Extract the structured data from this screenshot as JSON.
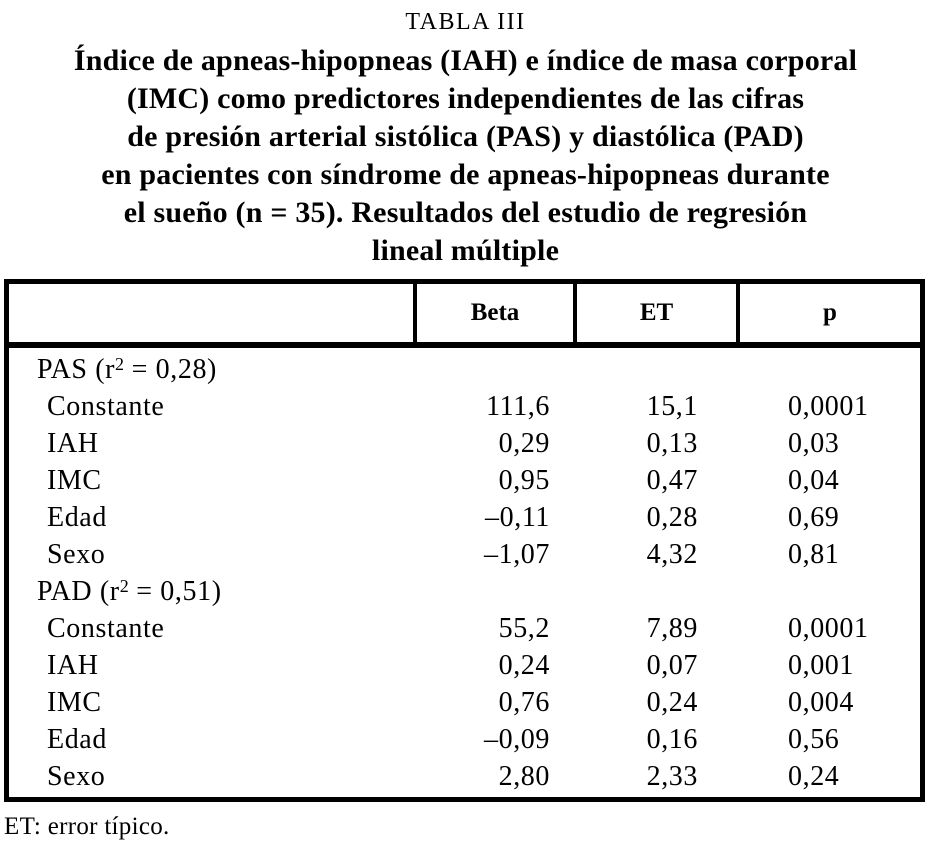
{
  "title": {
    "label": "TABLA III",
    "lines": [
      "Índice de apneas-hipopneas (IAH) e índice de masa corporal",
      "(IMC) como predictores independientes de las cifras",
      "de presión arterial sistólica (PAS) y diastólica (PAD)",
      "en pacientes con síndrome de apneas-hipopneas durante",
      "el sueño (n = 35). Resultados del estudio de regresión",
      "lineal múltiple"
    ]
  },
  "table": {
    "columns": [
      "",
      "Beta",
      "ET",
      "p"
    ],
    "sections": [
      {
        "header": {
          "prefix": "PAS (r",
          "sup": "2",
          "suffix": " = 0,28)"
        },
        "rows": [
          {
            "label": "Constante",
            "beta": "111,6",
            "et": "15,1",
            "p": "0,0001"
          },
          {
            "label": "IAH",
            "beta": "0,29",
            "et": "0,13",
            "p": "0,03"
          },
          {
            "label": "IMC",
            "beta": "0,95",
            "et": "0,47",
            "p": "0,04"
          },
          {
            "label": "Edad",
            "beta": "–0,11",
            "et": "0,28",
            "p": "0,69"
          },
          {
            "label": "Sexo",
            "beta": "–1,07",
            "et": "4,32",
            "p": "0,81"
          }
        ]
      },
      {
        "header": {
          "prefix": "PAD (r",
          "sup": "2",
          "suffix": " = 0,51)"
        },
        "rows": [
          {
            "label": "Constante",
            "beta": "55,2",
            "et": "7,89",
            "p": "0,0001"
          },
          {
            "label": "IAH",
            "beta": "0,24",
            "et": "0,07",
            "p": "0,001"
          },
          {
            "label": "IMC",
            "beta": "0,76",
            "et": "0,24",
            "p": "0,004"
          },
          {
            "label": "Edad",
            "beta": "–0,09",
            "et": "0,16",
            "p": "0,56"
          },
          {
            "label": "Sexo",
            "beta": "2,80",
            "et": "2,33",
            "p": "0,24"
          }
        ]
      }
    ]
  },
  "footnote": "ET: error típico.",
  "colors": {
    "text": "#000000",
    "background": "#ffffff",
    "rule": "#000000"
  }
}
